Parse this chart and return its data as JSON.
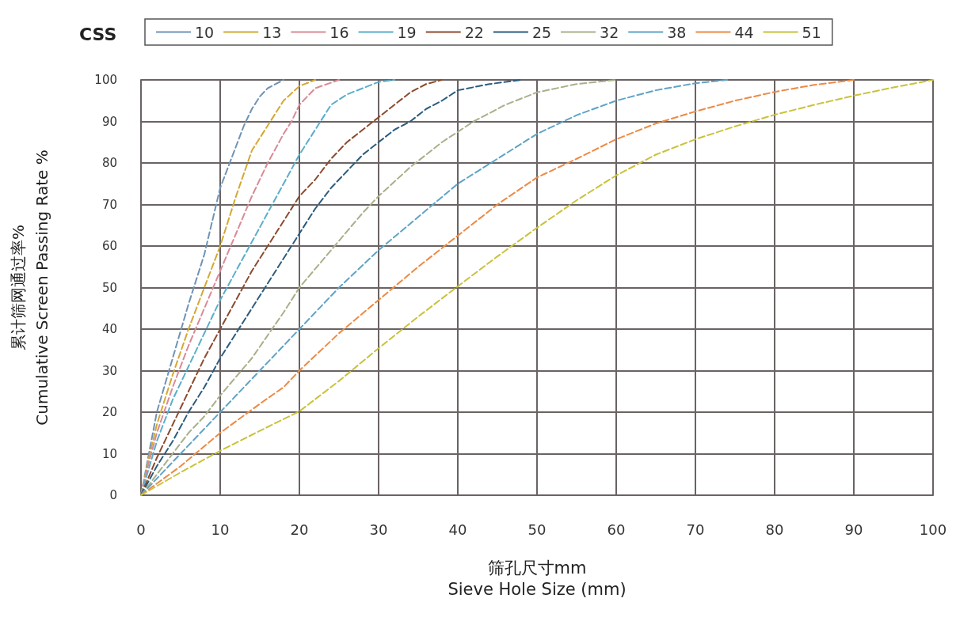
{
  "chart_data": {
    "type": "line",
    "xlabel": "筛孔尺寸mm\nSieve Hole Size (mm)",
    "ylabel": "累计筛网通过率%\nCumulative Screen Passing Rate %",
    "legend_title": "CSS",
    "legend": "top",
    "grid": true,
    "line_style": "dashed",
    "marker": "none",
    "xlim": [
      0,
      100
    ],
    "xticks": [
      0,
      10,
      20,
      30,
      40,
      50,
      60,
      70,
      80,
      90,
      100
    ],
    "ylim": [
      0,
      100
    ],
    "yticks": [
      0,
      10,
      20,
      30,
      40,
      50,
      60,
      70,
      80,
      90,
      100
    ],
    "series": [
      {
        "name": "10",
        "color": "#6f93b5",
        "x": [
          0,
          1,
          2,
          4,
          6,
          8,
          10,
          12,
          13,
          14,
          15,
          16,
          18
        ],
        "values": [
          0,
          10,
          20,
          33,
          46,
          58,
          74,
          84,
          89,
          93,
          96,
          98,
          100
        ]
      },
      {
        "name": "13",
        "color": "#d4a835",
        "x": [
          0,
          1,
          2,
          4,
          6,
          8,
          10,
          12,
          14,
          16,
          17,
          18,
          20,
          22
        ],
        "values": [
          0,
          9,
          17,
          29,
          40,
          50,
          60,
          72,
          83,
          89,
          92,
          95,
          98.5,
          100
        ]
      },
      {
        "name": "16",
        "color": "#d98a96",
        "x": [
          0,
          1,
          2,
          4,
          6,
          8,
          10,
          12,
          14,
          16,
          18,
          19,
          20,
          22,
          25
        ],
        "values": [
          0,
          8,
          15,
          26,
          36,
          45,
          54,
          63,
          72,
          80,
          87,
          90,
          94,
          98,
          100
        ]
      },
      {
        "name": "19",
        "color": "#5aaecb",
        "x": [
          0,
          2,
          4,
          6,
          8,
          10,
          12,
          14,
          16,
          18,
          20,
          22,
          24,
          26,
          28,
          30,
          32
        ],
        "values": [
          0,
          13,
          23,
          31,
          39,
          47,
          54,
          61,
          68,
          75,
          82,
          88,
          94,
          96.5,
          98,
          99.5,
          100
        ]
      },
      {
        "name": "22",
        "color": "#8b4a2e",
        "x": [
          0,
          2,
          4,
          6,
          8,
          10,
          12,
          14,
          16,
          18,
          20,
          22,
          24,
          26,
          28,
          30,
          32,
          34,
          36,
          38
        ],
        "values": [
          0,
          9,
          17,
          25,
          33,
          40,
          47,
          54,
          60,
          66,
          72,
          76,
          81,
          85,
          88,
          91,
          94,
          97,
          99,
          100
        ]
      },
      {
        "name": "25",
        "color": "#2b5c7e",
        "x": [
          0,
          2,
          4,
          6,
          8,
          10,
          12,
          14,
          16,
          18,
          20,
          22,
          24,
          26,
          28,
          30,
          32,
          34,
          36,
          38,
          40,
          44,
          48
        ],
        "values": [
          0,
          7,
          13,
          20,
          26,
          33,
          39,
          45,
          51,
          57,
          63,
          69,
          74,
          78,
          82,
          85,
          88,
          90,
          93,
          95,
          97.5,
          99,
          100
        ]
      },
      {
        "name": "32",
        "color": "#a8b08a",
        "x": [
          0,
          2,
          4,
          6,
          8,
          10,
          14,
          18,
          20,
          24,
          28,
          30,
          34,
          38,
          42,
          46,
          50,
          55,
          60
        ],
        "values": [
          0,
          5,
          10,
          15,
          19,
          24,
          33,
          44,
          50,
          59,
          68,
          72,
          79,
          85,
          90,
          94,
          97,
          99,
          100
        ]
      },
      {
        "name": "38",
        "color": "#5fa3c6",
        "x": [
          0,
          5,
          10,
          15,
          20,
          25,
          30,
          35,
          40,
          45,
          50,
          55,
          60,
          65,
          70,
          74
        ],
        "values": [
          0,
          10,
          20,
          30,
          40,
          50,
          59,
          67,
          75,
          81,
          87,
          91.5,
          95,
          97.5,
          99.2,
          100
        ]
      },
      {
        "name": "44",
        "color": "#ec8a45",
        "x": [
          0,
          5,
          10,
          15,
          18,
          20,
          25,
          30,
          35,
          40,
          45,
          50,
          55,
          60,
          65,
          70,
          75,
          80,
          85,
          90
        ],
        "values": [
          0,
          7,
          15,
          22,
          26,
          30,
          39,
          47,
          55,
          62.5,
          70,
          76.5,
          81,
          85.7,
          89.5,
          92.4,
          95,
          97.1,
          98.8,
          100
        ]
      },
      {
        "name": "51",
        "color": "#c9c23a",
        "x": [
          0,
          5,
          10,
          15,
          20,
          25,
          30,
          35,
          40,
          45,
          50,
          55,
          60,
          65,
          70,
          75,
          80,
          85,
          90,
          95,
          100
        ],
        "values": [
          0,
          5.5,
          10.7,
          15.5,
          20.2,
          27.5,
          35.4,
          43,
          50.3,
          57.5,
          64.4,
          71,
          77,
          82,
          85.7,
          88.8,
          91.6,
          94,
          96.2,
          98.2,
          100
        ]
      }
    ]
  }
}
